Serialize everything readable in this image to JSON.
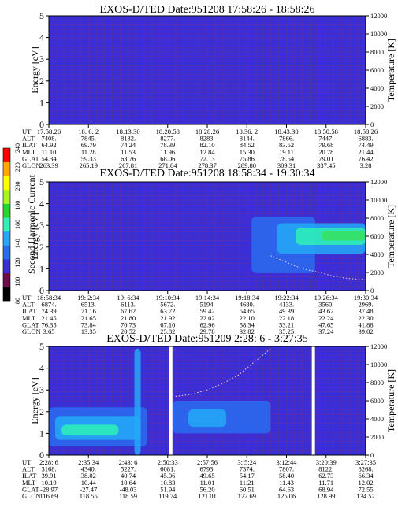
{
  "colors": {
    "background": "#3a2fd6",
    "grid": "#8a2c6a",
    "trace": "#ffd0d0",
    "colorbar": [
      "#000000",
      "#6a0f4a",
      "#3a2fd6",
      "#2a6cf0",
      "#23a9f7",
      "#2ff0b6",
      "#25d830",
      "#a9f51c",
      "#ffff00",
      "#ffa800",
      "#ff0000"
    ]
  },
  "colorbar": {
    "label": "Second Harmonic Current",
    "ticks": [
      "80",
      "100",
      "120",
      "140",
      "160",
      "180",
      "200",
      "220",
      "240"
    ]
  },
  "chart_data": [
    {
      "type": "heatmap",
      "title": "EXOS-D/TED   Date:951208   17:58:26 - 18:58:26",
      "ylabel": "Energy [eV]",
      "y2label": "Temperature [K]",
      "ylim": [
        0,
        5
      ],
      "y2lim": [
        0,
        12000
      ],
      "yticks": [
        "0",
        "1",
        "2",
        "3",
        "4",
        "5"
      ],
      "y2ticks": [
        "0",
        "2000",
        "4000",
        "6000",
        "8000",
        "10000",
        "12000"
      ],
      "gaps": [],
      "features": [],
      "trace": [],
      "rows": [
        {
          "label": "UT",
          "values": [
            "17:58:26",
            "18: 6: 2",
            "18:13:30",
            "18:20:58",
            "18:28:26",
            "18:36: 2",
            "18:43:30",
            "18:50:58",
            "18:58:26"
          ]
        },
        {
          "label": "ALT",
          "values": [
            "7408.",
            "7845.",
            "8132.",
            "8277.",
            "8283.",
            "8144.",
            "7866.",
            "7447.",
            "6883."
          ]
        },
        {
          "label": "ILAT",
          "values": [
            "64.92",
            "69.79",
            "74.24",
            "78.39",
            "82.10",
            "84.52",
            "83.52",
            "79.68",
            "74.49"
          ]
        },
        {
          "label": "MLT",
          "values": [
            "11.10",
            "11.28",
            "11.53",
            "11.96",
            "12.84",
            "15.30",
            "19.11",
            "20.78",
            "21.44"
          ]
        },
        {
          "label": "GLAT",
          "values": [
            "54.34",
            "59.33",
            "63.76",
            "68.06",
            "72.13",
            "75.86",
            "78.54",
            "79.01",
            "76.42"
          ]
        },
        {
          "label": "GLON",
          "values": [
            "263.39",
            "265.19",
            "267.81",
            "271.84",
            "278.37",
            "289.80",
            "309.31",
            "337.45",
            "3.28"
          ]
        }
      ]
    },
    {
      "type": "heatmap",
      "title": "EXOS-D/TED   Date:951208   18:58:34 - 19:30:34",
      "ylabel": "Energy [eV]",
      "y2label": "Temperature [K]",
      "ylim": [
        0,
        5
      ],
      "y2lim": [
        0,
        12000
      ],
      "yticks": [
        "0",
        "1",
        "2",
        "3",
        "4",
        "5"
      ],
      "y2ticks": [
        "0",
        "2000",
        "4000",
        "6000",
        "8000",
        "10000",
        "12000"
      ],
      "gaps": [],
      "features": [
        {
          "x": [
            0.64,
            0.84
          ],
          "y": [
            0.8,
            3.4
          ],
          "level": 1
        },
        {
          "x": [
            0.72,
            1.0
          ],
          "y": [
            1.7,
            3.1
          ],
          "level": 2
        },
        {
          "x": [
            0.78,
            1.0
          ],
          "y": [
            2.1,
            2.9
          ],
          "level": 3
        },
        {
          "x": [
            0.86,
            1.0
          ],
          "y": [
            2.3,
            2.75
          ],
          "level": 4
        }
      ],
      "trace": [
        [
          0.7,
          1.6
        ],
        [
          0.75,
          1.3
        ],
        [
          0.8,
          1.0
        ],
        [
          0.85,
          0.85
        ],
        [
          0.9,
          0.65
        ],
        [
          0.95,
          0.55
        ],
        [
          1.0,
          0.5
        ]
      ],
      "rows": [
        {
          "label": "UT",
          "values": [
            "18:58:34",
            "19: 2:34",
            "19: 6:34",
            "19:10:34",
            "19:14:34",
            "19:18:34",
            "19:22:34",
            "19:26:34",
            "19:30:34"
          ]
        },
        {
          "label": "ALT",
          "values": [
            "6874.",
            "6513.",
            "6113.",
            "5672.",
            "5194.",
            "4680.",
            "4133.",
            "3560.",
            "2969."
          ]
        },
        {
          "label": "ILAT",
          "values": [
            "74.39",
            "71.16",
            "67.62",
            "63.72",
            "59.42",
            "54.65",
            "49.39",
            "43.62",
            "37.48"
          ]
        },
        {
          "label": "MLT",
          "values": [
            "21.45",
            "21.65",
            "21.80",
            "21.92",
            "22.02",
            "22.10",
            "22.18",
            "22.24",
            "22.30"
          ]
        },
        {
          "label": "GLAT",
          "values": [
            "76.35",
            "73.84",
            "70.73",
            "67.10",
            "62.96",
            "58.34",
            "53.21",
            "47.65",
            "41.88"
          ]
        },
        {
          "label": "GLON",
          "values": [
            "3.65",
            "13.35",
            "20.52",
            "25.82",
            "29.78",
            "32.82",
            "35.25",
            "37.24",
            "39.02"
          ]
        }
      ]
    },
    {
      "type": "heatmap",
      "title": "EXOS-D/TED   Date:951209   2:28: 6 - 3:27:35",
      "ylabel": "Energy [eV]",
      "y2label": "Temperature [K]",
      "ylim": [
        0,
        5
      ],
      "y2lim": [
        0,
        12000
      ],
      "yticks": [
        "0",
        "1",
        "2",
        "3",
        "4",
        "5"
      ],
      "y2ticks": [
        "0",
        "2000",
        "4000",
        "6000",
        "8000",
        "10000",
        "12000"
      ],
      "gaps": [
        [
          0.38,
          0.39
        ],
        [
          0.83,
          0.84
        ]
      ],
      "features": [
        {
          "x": [
            0.0,
            0.31
          ],
          "y": [
            0.4,
            2.2
          ],
          "level": 1
        },
        {
          "x": [
            0.02,
            0.29
          ],
          "y": [
            0.7,
            1.8
          ],
          "level": 2
        },
        {
          "x": [
            0.04,
            0.22
          ],
          "y": [
            0.9,
            1.4
          ],
          "level": 3
        },
        {
          "x": [
            0.27,
            0.29
          ],
          "y": [
            0.0,
            4.9
          ],
          "level": 2
        },
        {
          "x": [
            0.39,
            0.7
          ],
          "y": [
            1.0,
            2.5
          ],
          "level": 1
        },
        {
          "x": [
            0.44,
            0.56
          ],
          "y": [
            1.3,
            2.1
          ],
          "level": 2
        }
      ],
      "trace": [
        [
          0.4,
          2.7
        ],
        [
          0.45,
          2.8
        ],
        [
          0.5,
          3.0
        ],
        [
          0.55,
          3.3
        ],
        [
          0.6,
          3.7
        ],
        [
          0.65,
          4.3
        ],
        [
          0.7,
          4.9
        ]
      ],
      "rows": [
        {
          "label": "UT",
          "values": [
            "2:28: 6",
            "2:35:34",
            "2:43: 6",
            "2:50:33",
            "2:57:56",
            "3: 5:24",
            "3:12:44",
            "3:20:39",
            "3:27:35"
          ]
        },
        {
          "label": "ALT",
          "values": [
            "3168.",
            "4340.",
            "5227.",
            "6081.",
            "6793.",
            "7374.",
            "7807.",
            "8122.",
            "8268."
          ]
        },
        {
          "label": "ILAT",
          "values": [
            "39.91",
            "38.02",
            "40.74",
            "45.06",
            "49.65",
            "54.17",
            "58.40",
            "62.73",
            "66.34"
          ]
        },
        {
          "label": "MLT",
          "values": [
            "10.19",
            "10.44",
            "10.64",
            "10.83",
            "11.01",
            "11.21",
            "11.43",
            "11.71",
            "12.02"
          ]
        },
        {
          "label": "GLAT",
          "values": [
            "-28.97",
            "-27.47",
            "-48.03",
            "51.94",
            "56.20",
            "60.51",
            "64.63",
            "68.94",
            "72.55"
          ]
        },
        {
          "label": "GLON",
          "values": [
            "116.69",
            "118.55",
            "118.59",
            "119.74",
            "121.01",
            "122.69",
            "125.06",
            "128.99",
            "134.52"
          ]
        }
      ]
    }
  ]
}
